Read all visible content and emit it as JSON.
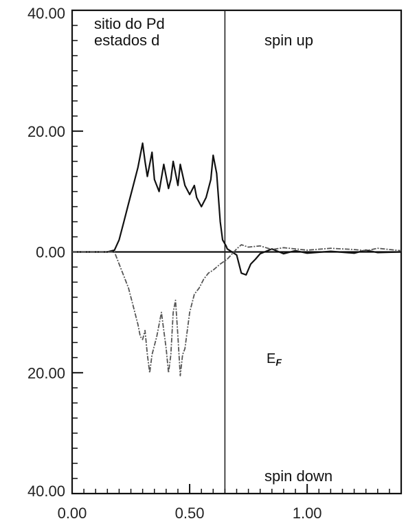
{
  "chart_data": {
    "type": "line",
    "title": "",
    "xlabel": "",
    "ylabel": "",
    "xlim": [
      0,
      1.4
    ],
    "ylim": [
      -40,
      40
    ],
    "xticks": [
      {
        "value": 0.0,
        "label": "0.00"
      },
      {
        "value": 0.5,
        "label": "0.50"
      },
      {
        "value": 1.0,
        "label": "1.00"
      }
    ],
    "yticks": [
      {
        "value": 40,
        "label": "40.00"
      },
      {
        "value": 20,
        "label": "20.00"
      },
      {
        "value": 0,
        "label": "0.00"
      },
      {
        "value": -20,
        "label": "20.00"
      },
      {
        "value": -40,
        "label": "40.00"
      }
    ],
    "fermi_level_x": 0.65,
    "annotations": {
      "site_line1": "sitio do Pd",
      "site_line2": "estados d",
      "spin_up": "spin up",
      "spin_down": "spin down",
      "ef_main": "E",
      "ef_sub": "F"
    },
    "series": [
      {
        "values_desc": "spin up",
        "color": "#111111",
        "points": [
          [
            0.0,
            0
          ],
          [
            0.15,
            0
          ],
          [
            0.18,
            0.3
          ],
          [
            0.2,
            2
          ],
          [
            0.22,
            5
          ],
          [
            0.24,
            8
          ],
          [
            0.26,
            11
          ],
          [
            0.28,
            14
          ],
          [
            0.3,
            18
          ],
          [
            0.31,
            15
          ],
          [
            0.32,
            12.5
          ],
          [
            0.34,
            16.5
          ],
          [
            0.35,
            12
          ],
          [
            0.37,
            10
          ],
          [
            0.39,
            14.5
          ],
          [
            0.41,
            10.5
          ],
          [
            0.42,
            12
          ],
          [
            0.43,
            15
          ],
          [
            0.45,
            11
          ],
          [
            0.46,
            14.5
          ],
          [
            0.48,
            11
          ],
          [
            0.5,
            9.5
          ],
          [
            0.52,
            11
          ],
          [
            0.53,
            9
          ],
          [
            0.55,
            7.5
          ],
          [
            0.57,
            9
          ],
          [
            0.59,
            12
          ],
          [
            0.6,
            16
          ],
          [
            0.615,
            13
          ],
          [
            0.63,
            5
          ],
          [
            0.64,
            2
          ],
          [
            0.655,
            1
          ],
          [
            0.66,
            0.5
          ],
          [
            0.7,
            -0.5
          ],
          [
            0.72,
            -3.5
          ],
          [
            0.74,
            -3.8
          ],
          [
            0.76,
            -2
          ],
          [
            0.78,
            -1.2
          ],
          [
            0.8,
            -0.3
          ],
          [
            0.85,
            0.5
          ],
          [
            0.9,
            -0.3
          ],
          [
            0.95,
            0.2
          ],
          [
            1.0,
            -0.2
          ],
          [
            1.1,
            0.1
          ],
          [
            1.2,
            -0.2
          ],
          [
            1.25,
            0.3
          ],
          [
            1.3,
            -0.1
          ],
          [
            1.4,
            0
          ]
        ]
      },
      {
        "values_desc": "spin down",
        "color": "#555555",
        "points": [
          [
            0.0,
            0
          ],
          [
            0.18,
            0
          ],
          [
            0.2,
            -2
          ],
          [
            0.22,
            -4
          ],
          [
            0.24,
            -6
          ],
          [
            0.26,
            -9
          ],
          [
            0.28,
            -12
          ],
          [
            0.29,
            -14
          ],
          [
            0.3,
            -14.5
          ],
          [
            0.31,
            -13
          ],
          [
            0.32,
            -17
          ],
          [
            0.33,
            -20
          ],
          [
            0.34,
            -17
          ],
          [
            0.36,
            -14
          ],
          [
            0.38,
            -10
          ],
          [
            0.39,
            -13
          ],
          [
            0.4,
            -16
          ],
          [
            0.41,
            -20
          ],
          [
            0.42,
            -17
          ],
          [
            0.43,
            -10
          ],
          [
            0.44,
            -8
          ],
          [
            0.45,
            -14
          ],
          [
            0.46,
            -20.5
          ],
          [
            0.47,
            -17
          ],
          [
            0.48,
            -16
          ],
          [
            0.5,
            -10
          ],
          [
            0.52,
            -7
          ],
          [
            0.54,
            -6
          ],
          [
            0.56,
            -4.5
          ],
          [
            0.58,
            -3.5
          ],
          [
            0.6,
            -3
          ],
          [
            0.63,
            -2
          ],
          [
            0.66,
            -1.2
          ],
          [
            0.7,
            0.5
          ],
          [
            0.72,
            1.2
          ],
          [
            0.75,
            0.8
          ],
          [
            0.8,
            1
          ],
          [
            0.85,
            0.4
          ],
          [
            0.9,
            0.7
          ],
          [
            1.0,
            0.3
          ],
          [
            1.1,
            0.6
          ],
          [
            1.2,
            0.4
          ],
          [
            1.25,
            0.2
          ],
          [
            1.3,
            0.6
          ],
          [
            1.4,
            0.2
          ]
        ]
      }
    ]
  }
}
